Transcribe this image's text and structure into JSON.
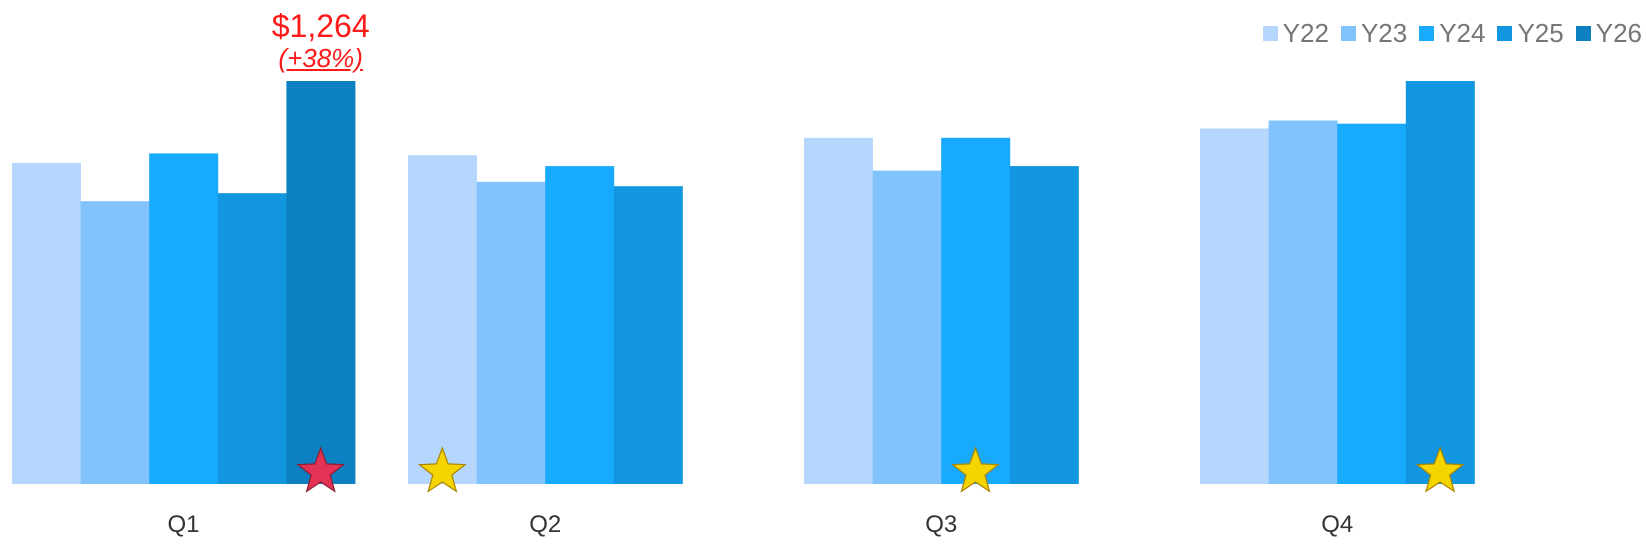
{
  "chart_data": {
    "type": "bar",
    "title": "",
    "xlabel": "",
    "ylabel": "",
    "categories": [
      "Q1",
      "Q2",
      "Q3",
      "Q4"
    ],
    "ylim": [
      0,
      1264
    ],
    "grid": false,
    "legend_position": "top-right",
    "series": [
      {
        "name": "Y22",
        "color": "#b5d6fd",
        "values": [
          1007,
          1031,
          1086,
          1115
        ]
      },
      {
        "name": "Y23",
        "color": "#82c2fd",
        "values": [
          887,
          948,
          983,
          1140
        ]
      },
      {
        "name": "Y24",
        "color": "#17aafd",
        "values": [
          1037,
          997,
          1086,
          1130
        ]
      },
      {
        "name": "Y25",
        "color": "#1296e0",
        "values": [
          912,
          934,
          997,
          1264
        ]
      },
      {
        "name": "Y26",
        "color": "#0d80c1",
        "values": [
          1264,
          null,
          null,
          null
        ]
      }
    ],
    "annotations": [
      {
        "category": "Q1",
        "series": "Y26",
        "value_label": "$1,264",
        "change_label": "(+38%)",
        "color": "#ff1a1a"
      }
    ],
    "markers": [
      {
        "category": "Q1",
        "series": "Y26",
        "icon": "star-icon",
        "color": "#e23355"
      },
      {
        "category": "Q2",
        "series": "Y22",
        "icon": "star-icon",
        "color": "#f5d400"
      },
      {
        "category": "Q3",
        "series": "Y24",
        "icon": "star-icon",
        "color": "#f5d400"
      },
      {
        "category": "Q4",
        "series": "Y25",
        "icon": "star-icon",
        "color": "#f5d400"
      }
    ]
  }
}
